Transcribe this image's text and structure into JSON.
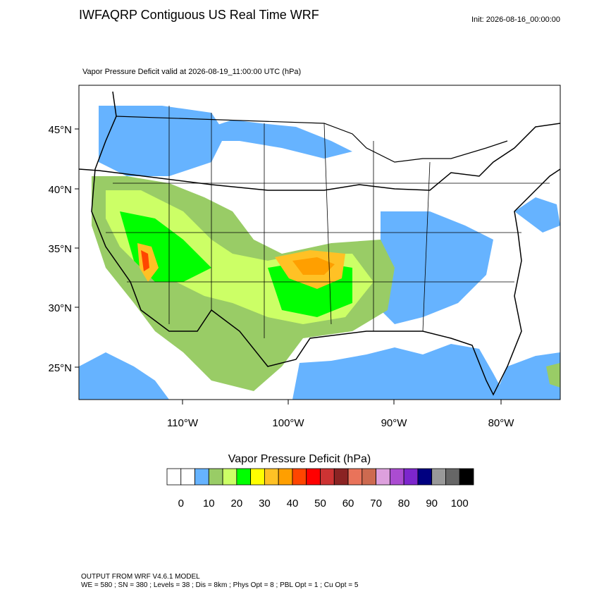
{
  "header": {
    "title": "IWFAQRP Contiguous US Real Time WRF",
    "init": "Init: 2026-08-16_00:00:00",
    "subtitle": "Vapor Pressure Deficit valid at 2026-08-19_11:00:00 UTC   (hPa)"
  },
  "map": {
    "lat_labels": [
      "45°N",
      "40°N",
      "35°N",
      "30°N",
      "25°N"
    ],
    "lon_labels": [
      "110°W",
      "100°W",
      "90°W",
      "80°W"
    ]
  },
  "colorbar": {
    "title": "Vapor Pressure Deficit  (hPa)",
    "colors": [
      "#ffffff",
      "#ffffff",
      "#66b3ff",
      "#99cc66",
      "#ccff66",
      "#00ff00",
      "#ffff00",
      "#ffc125",
      "#ff9f00",
      "#ff4500",
      "#ff0000",
      "#cd3333",
      "#8b2323",
      "#e9735a",
      "#cd6a50",
      "#dda0dd",
      "#ab4cd1",
      "#7d26cd",
      "#000080",
      "#999999",
      "#666666",
      "#000000"
    ],
    "ticks": [
      0,
      10,
      20,
      30,
      40,
      50,
      60,
      70,
      80,
      90,
      100
    ]
  },
  "footer": {
    "line1": "OUTPUT FROM WRF V4.6.1 MODEL",
    "line2": "WE = 580 ; SN = 380 ; Levels = 38 ; Dis = 8km ; Phys Opt = 8 ; PBL Opt = 1 ; Cu Opt = 5"
  }
}
